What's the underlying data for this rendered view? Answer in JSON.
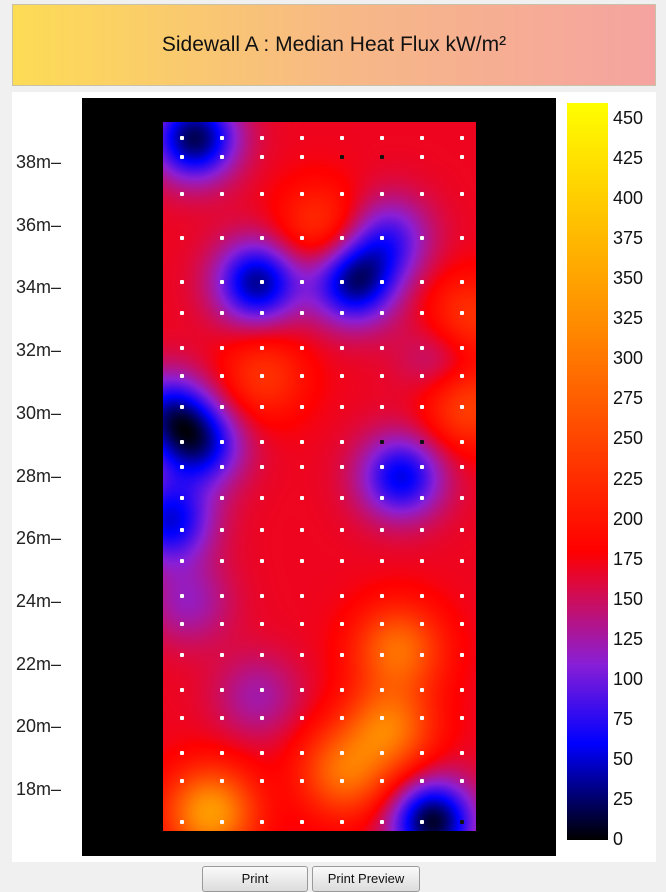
{
  "chart_data": {
    "type": "heatmap",
    "title": "Sidewall A : Median Heat Flux kW/m²",
    "ylabel": "",
    "y_ticks": [
      "18m",
      "20m",
      "22m",
      "24m",
      "26m",
      "28m",
      "30m",
      "32m",
      "34m",
      "36m",
      "38m"
    ],
    "y_tick_values": [
      18,
      20,
      22,
      24,
      26,
      28,
      30,
      32,
      34,
      36,
      38
    ],
    "ylim": [
      16.7,
      39.3
    ],
    "colorbar": {
      "ticks": [
        0,
        25,
        50,
        75,
        100,
        125,
        150,
        175,
        200,
        225,
        250,
        275,
        300,
        325,
        350,
        375,
        400,
        425,
        450
      ],
      "range": [
        0,
        460
      ],
      "colors": [
        "#000000",
        "#0000ff",
        "#8a1fd6",
        "#ff0000",
        "#ff8a00",
        "#ffff00"
      ]
    },
    "background_level": 170,
    "hot_cold_spots": [
      {
        "name": "cold-top-left",
        "x": 0.1,
        "y": 38.8,
        "value": 20
      },
      {
        "name": "cold-34-a",
        "x": 0.3,
        "y": 34.2,
        "value": 35
      },
      {
        "name": "cold-34-b",
        "x": 0.61,
        "y": 34.2,
        "value": 35
      },
      {
        "name": "cold-35-right",
        "x": 0.72,
        "y": 35.6,
        "value": 90
      },
      {
        "name": "cold-30-left",
        "x": 0.02,
        "y": 30.0,
        "value": 60
      },
      {
        "name": "cold-29-left",
        "x": 0.12,
        "y": 29.0,
        "value": 60
      },
      {
        "name": "cold-28-right",
        "x": 0.76,
        "y": 28.0,
        "value": 55
      },
      {
        "name": "cold-27-left",
        "x": 0.02,
        "y": 26.6,
        "value": 55
      },
      {
        "name": "cold-bottom-right",
        "x": 0.86,
        "y": 17.0,
        "value": 10
      },
      {
        "name": "hot-36",
        "x": 0.5,
        "y": 36.0,
        "value": 230
      },
      {
        "name": "hot-31",
        "x": 0.32,
        "y": 31.2,
        "value": 230
      },
      {
        "name": "hot-30-right",
        "x": 0.97,
        "y": 30.3,
        "value": 250
      },
      {
        "name": "hot-33-right",
        "x": 0.97,
        "y": 33.0,
        "value": 240
      },
      {
        "name": "hot-22",
        "x": 0.75,
        "y": 22.5,
        "value": 290
      },
      {
        "name": "hot-20",
        "x": 0.72,
        "y": 20.0,
        "value": 300
      },
      {
        "name": "hot-18-bl",
        "x": 0.15,
        "y": 17.3,
        "value": 340
      },
      {
        "name": "hot-19",
        "x": 0.58,
        "y": 18.6,
        "value": 290
      },
      {
        "name": "purple-24",
        "x": 0.08,
        "y": 24.0,
        "value": 120
      },
      {
        "name": "purple-21",
        "x": 0.3,
        "y": 21.0,
        "value": 125
      },
      {
        "name": "purple-32-right",
        "x": 0.9,
        "y": 31.8,
        "value": 120
      }
    ],
    "sensor_columns": 8,
    "sensor_rows_m": [
      17.0,
      18.3,
      19.2,
      20.3,
      21.2,
      22.3,
      23.3,
      24.2,
      25.3,
      26.3,
      27.3,
      28.3,
      29.1,
      30.2,
      31.2,
      32.1,
      33.2,
      34.2,
      35.6,
      37.0,
      38.2,
      38.8
    ],
    "dark_sensors": [
      {
        "col": 4,
        "y": 38.2
      },
      {
        "col": 5,
        "y": 38.2
      },
      {
        "col": 5,
        "y": 29.1
      },
      {
        "col": 6,
        "y": 29.1
      },
      {
        "col": 7,
        "y": 17.0
      }
    ]
  },
  "buttons": {
    "print_label": "Print",
    "print_preview_label": "Print Preview"
  }
}
